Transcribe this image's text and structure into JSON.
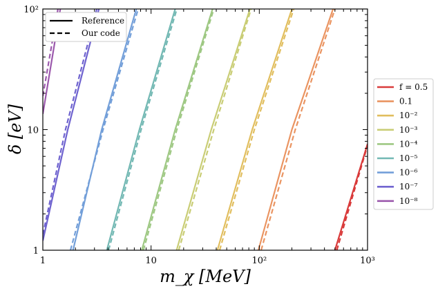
{
  "chart_data": {
    "type": "line",
    "xlabel": "m_χ [MeV]",
    "ylabel": "δ [eV]",
    "xscale": "log",
    "yscale": "log",
    "xlim": [
      1,
      1000
    ],
    "ylim": [
      1,
      100
    ],
    "xticks": [
      {
        "value": 1,
        "label": "1"
      },
      {
        "value": 10,
        "label": "10"
      },
      {
        "value": 100,
        "label": "10²"
      },
      {
        "value": 1000,
        "label": "10³"
      }
    ],
    "yticks": [
      {
        "value": 1,
        "label": "1"
      },
      {
        "value": 10,
        "label": "10"
      },
      {
        "value": 100,
        "label": "10²"
      }
    ],
    "style_legend": {
      "placement": "top-left",
      "entries": [
        {
          "label": "Reference",
          "dash": "solid"
        },
        {
          "label": "Our code",
          "dash": "dashed"
        }
      ]
    },
    "series_legend": {
      "placement": "outside-right",
      "entries": [
        {
          "label": "f = 0.5",
          "color": "#d93a3a"
        },
        {
          "label": "0.1",
          "color": "#ea9461"
        },
        {
          "label": "10⁻²",
          "color": "#e1be5e"
        },
        {
          "label": "10⁻³",
          "color": "#c9cd75"
        },
        {
          "label": "10⁻⁴",
          "color": "#9ec883"
        },
        {
          "label": "10⁻⁵",
          "color": "#72b8b3"
        },
        {
          "label": "10⁻⁶",
          "color": "#739fd9"
        },
        {
          "label": "10⁻⁷",
          "color": "#6e62cf"
        },
        {
          "label": "10⁻⁸",
          "color": "#9b58ac"
        }
      ]
    },
    "series": [
      {
        "color": "#d93a3a",
        "reference": {
          "x": [
            500,
            1000
          ],
          "y": [
            1,
            7.6
          ]
        },
        "our_code": {
          "x": [
            520,
            1000
          ],
          "y": [
            1,
            7.4
          ]
        }
      },
      {
        "color": "#ea9461",
        "reference": {
          "x": [
            98,
            200,
            480
          ],
          "y": [
            1,
            10,
            100
          ]
        },
        "our_code": {
          "x": [
            104,
            215,
            500
          ],
          "y": [
            1,
            10,
            100
          ]
        }
      },
      {
        "color": "#e1be5e",
        "reference": {
          "x": [
            41,
            86,
            200
          ],
          "y": [
            1,
            10,
            100
          ]
        },
        "our_code": {
          "x": [
            43,
            90,
            208
          ],
          "y": [
            1,
            10,
            100
          ]
        }
      },
      {
        "color": "#c9cd75",
        "reference": {
          "x": [
            17.2,
            36,
            82
          ],
          "y": [
            1,
            10,
            100
          ]
        },
        "our_code": {
          "x": [
            18,
            38,
            84
          ],
          "y": [
            1,
            10,
            100
          ]
        }
      },
      {
        "color": "#9ec883",
        "reference": {
          "x": [
            8.2,
            16.7,
            37
          ],
          "y": [
            1,
            10,
            100
          ]
        },
        "our_code": {
          "x": [
            8.5,
            17.3,
            38
          ],
          "y": [
            1,
            10,
            100
          ]
        }
      },
      {
        "color": "#72b8b3",
        "reference": {
          "x": [
            3.9,
            7.8,
            16.7
          ],
          "y": [
            1,
            10,
            100
          ]
        },
        "our_code": {
          "x": [
            4.05,
            8.1,
            17.3
          ],
          "y": [
            1,
            10,
            100
          ]
        }
      },
      {
        "color": "#739fd9",
        "reference": {
          "x": [
            1.9,
            3.5,
            7.3
          ],
          "y": [
            1,
            10,
            100
          ]
        },
        "our_code": {
          "x": [
            1.8,
            3.6,
            7.6
          ],
          "y": [
            1,
            10,
            100
          ]
        }
      },
      {
        "color": "#6e62cf",
        "reference": {
          "x": [
            1,
            1.7,
            3.3
          ],
          "y": [
            1.2,
            10,
            100
          ]
        },
        "our_code": {
          "x": [
            1,
            1.62,
            3.15
          ],
          "y": [
            1.35,
            10,
            100
          ]
        }
      },
      {
        "color": "#9b58ac",
        "reference": {
          "x": [
            1,
            1.45
          ],
          "y": [
            13.5,
            100
          ]
        },
        "our_code": {
          "x": [
            1,
            1.38
          ],
          "y": [
            19,
            100
          ]
        }
      }
    ]
  }
}
